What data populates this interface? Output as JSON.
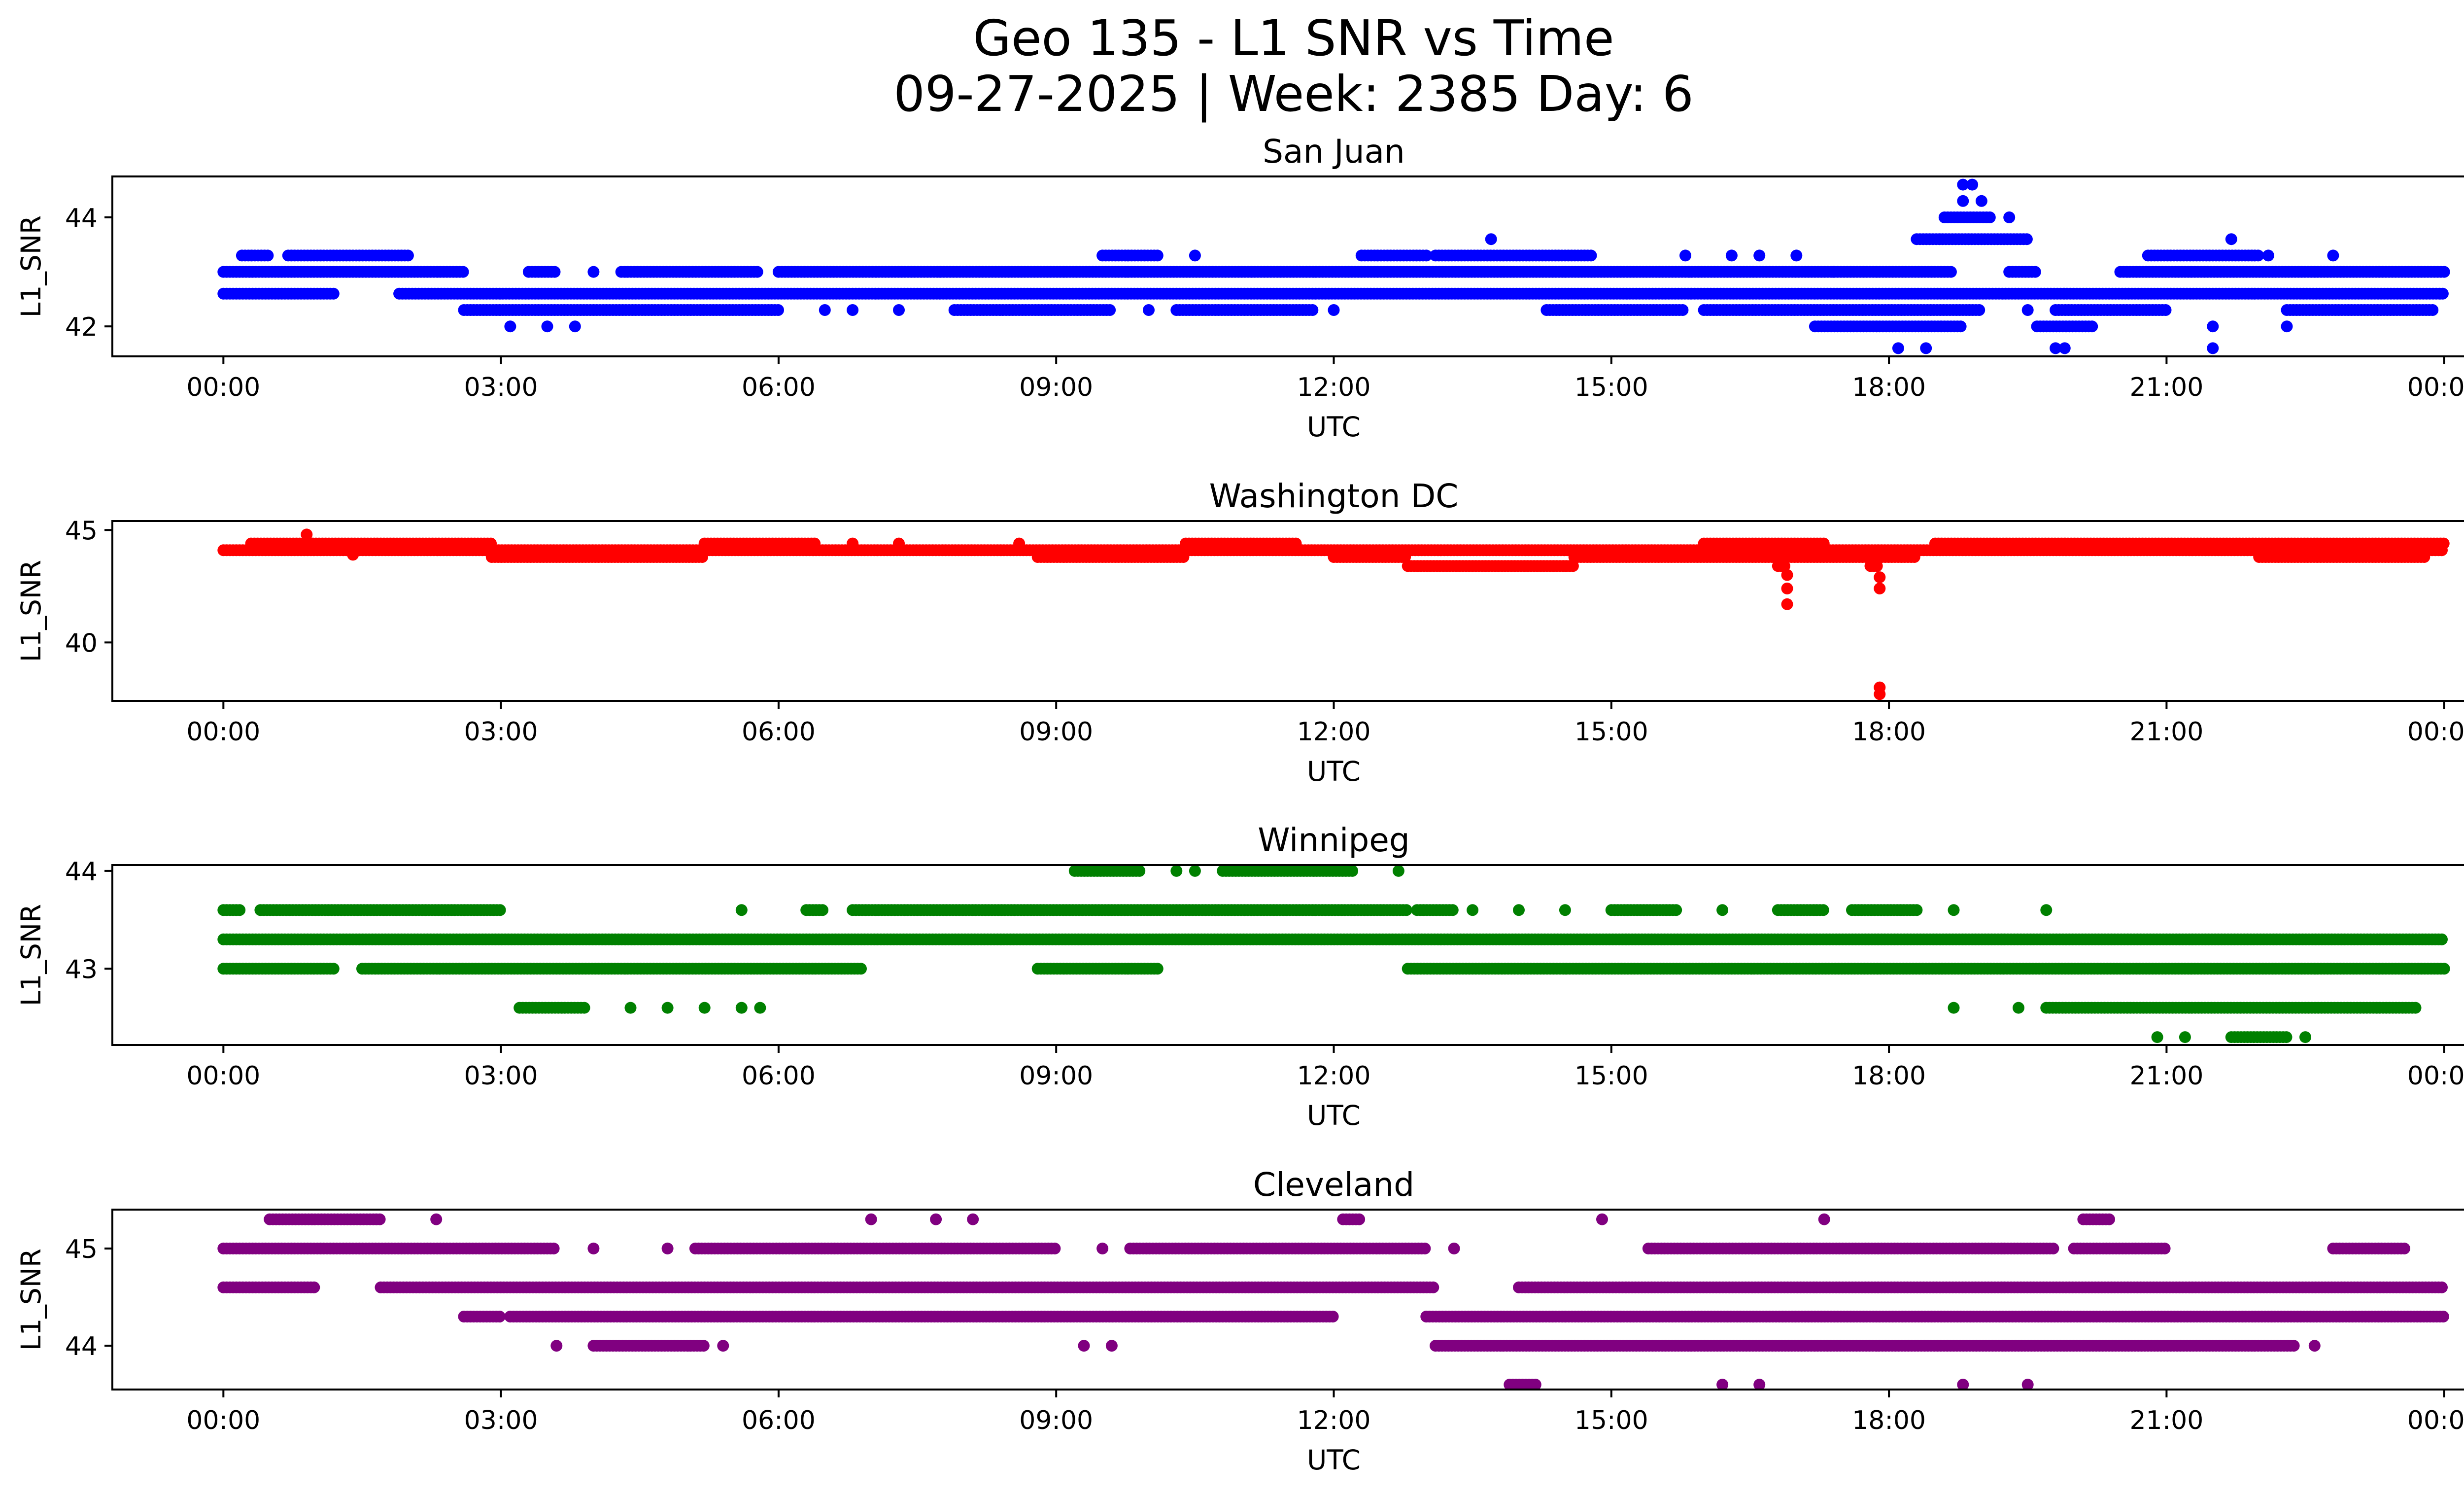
{
  "figure": {
    "title_line1": "Geo 135 - L1 SNR vs Time",
    "title_line2": "09-27-2025 | Week: 2385 Day: 6"
  },
  "chart_data": [
    {
      "type": "scatter",
      "title": "San Juan",
      "xlabel": "UTC",
      "ylabel": "L1_SNR",
      "color": "#0000ff",
      "xlim_hours": [
        -1.2,
        25.2
      ],
      "ylim": [
        41.45,
        44.75
      ],
      "xticks": [
        0,
        3,
        6,
        9,
        12,
        15,
        18,
        21,
        24
      ],
      "xtick_labels": [
        "00:00",
        "03:00",
        "06:00",
        "09:00",
        "12:00",
        "15:00",
        "18:00",
        "21:00",
        "00:00"
      ],
      "yticks": [
        42,
        44
      ],
      "ytick_labels": [
        "42",
        "44"
      ],
      "levels": [
        {
          "y": 42.6,
          "segments": [
            [
              0,
              1.2
            ],
            [
              1.9,
              24
            ]
          ]
        },
        {
          "y": 43.0,
          "segments": [
            [
              0,
              2.6
            ],
            [
              3.3,
              3.6
            ],
            [
              4.3,
              5.8
            ],
            [
              6.0,
              18.7
            ],
            [
              19.3,
              19.6
            ],
            [
              20.5,
              24
            ]
          ]
        },
        {
          "y": 42.3,
          "segments": [
            [
              2.6,
              6.0
            ],
            [
              7.9,
              9.6
            ],
            [
              10.3,
              11.8
            ],
            [
              14.3,
              15.8
            ],
            [
              16.0,
              19.0
            ],
            [
              19.8,
              21.0
            ],
            [
              22.3,
              23.9
            ]
          ]
        },
        {
          "y": 43.3,
          "segments": [
            [
              0.2,
              0.5
            ],
            [
              0.7,
              2.0
            ],
            [
              9.5,
              10.1
            ],
            [
              12.3,
              13.0
            ],
            [
              13.1,
              14.8
            ],
            [
              20.8,
              22.0
            ]
          ]
        },
        {
          "y": 42.0,
          "segments": [
            [
              17.2,
              18.8
            ],
            [
              19.6,
              20.2
            ]
          ]
        },
        {
          "y": 43.6,
          "segments": [
            [
              18.3,
              19.5
            ]
          ]
        },
        {
          "y": 44.0,
          "segments": [
            [
              18.6,
              19.1
            ]
          ]
        }
      ],
      "points": [
        {
          "x": 3.1,
          "y": 42.0
        },
        {
          "x": 3.5,
          "y": 42.0
        },
        {
          "x": 3.8,
          "y": 42.0
        },
        {
          "x": 4.0,
          "y": 43.0
        },
        {
          "x": 6.5,
          "y": 42.3
        },
        {
          "x": 6.8,
          "y": 42.3
        },
        {
          "x": 7.3,
          "y": 42.3
        },
        {
          "x": 10.0,
          "y": 42.3
        },
        {
          "x": 10.5,
          "y": 43.3
        },
        {
          "x": 12.0,
          "y": 42.3
        },
        {
          "x": 13.7,
          "y": 43.6
        },
        {
          "x": 15.8,
          "y": 43.3
        },
        {
          "x": 16.3,
          "y": 43.3
        },
        {
          "x": 16.6,
          "y": 43.3
        },
        {
          "x": 17.0,
          "y": 43.3
        },
        {
          "x": 17.4,
          "y": 43.0
        },
        {
          "x": 18.1,
          "y": 41.6
        },
        {
          "x": 18.4,
          "y": 41.6
        },
        {
          "x": 18.8,
          "y": 44.3
        },
        {
          "x": 18.8,
          "y": 44.6
        },
        {
          "x": 18.9,
          "y": 44.6
        },
        {
          "x": 19.0,
          "y": 44.3
        },
        {
          "x": 19.3,
          "y": 44.0
        },
        {
          "x": 19.5,
          "y": 42.3
        },
        {
          "x": 19.8,
          "y": 41.6
        },
        {
          "x": 19.9,
          "y": 41.6
        },
        {
          "x": 21.5,
          "y": 41.6
        },
        {
          "x": 21.5,
          "y": 42.0
        },
        {
          "x": 21.7,
          "y": 43.6
        },
        {
          "x": 22.1,
          "y": 43.3
        },
        {
          "x": 22.3,
          "y": 42.0
        },
        {
          "x": 22.8,
          "y": 43.3
        }
      ]
    },
    {
      "type": "scatter",
      "title": "Washington DC",
      "xlabel": "UTC",
      "ylabel": "L1_SNR",
      "color": "#ff0000",
      "xlim_hours": [
        -1.2,
        25.2
      ],
      "ylim": [
        37.4,
        45.4
      ],
      "xticks": [
        0,
        3,
        6,
        9,
        12,
        15,
        18,
        21,
        24
      ],
      "xtick_labels": [
        "00:00",
        "03:00",
        "06:00",
        "09:00",
        "12:00",
        "15:00",
        "18:00",
        "21:00",
        "00:00"
      ],
      "yticks": [
        40,
        45
      ],
      "ytick_labels": [
        "40",
        "45"
      ],
      "levels": [
        {
          "y": 44.1,
          "segments": [
            [
              0,
              24
            ]
          ]
        },
        {
          "y": 44.4,
          "segments": [
            [
              0.3,
              2.9
            ],
            [
              5.2,
              6.4
            ],
            [
              10.4,
              11.6
            ],
            [
              16.0,
              17.3
            ],
            [
              18.5,
              24
            ]
          ]
        },
        {
          "y": 43.8,
          "segments": [
            [
              2.9,
              5.2
            ],
            [
              8.8,
              10.4
            ],
            [
              12.0,
              12.8
            ],
            [
              14.6,
              18.3
            ],
            [
              22.0,
              23.8
            ]
          ]
        },
        {
          "y": 43.4,
          "segments": [
            [
              12.8,
              14.6
            ],
            [
              16.8,
              16.9
            ],
            [
              17.8,
              17.9
            ]
          ]
        }
      ],
      "points": [
        {
          "x": 0.9,
          "y": 44.8
        },
        {
          "x": 1.4,
          "y": 43.9
        },
        {
          "x": 6.8,
          "y": 44.4
        },
        {
          "x": 7.3,
          "y": 44.4
        },
        {
          "x": 8.6,
          "y": 44.4
        },
        {
          "x": 16.9,
          "y": 43.0
        },
        {
          "x": 16.9,
          "y": 42.4
        },
        {
          "x": 16.9,
          "y": 41.7
        },
        {
          "x": 17.9,
          "y": 42.9
        },
        {
          "x": 17.9,
          "y": 42.4
        },
        {
          "x": 17.9,
          "y": 38.0
        },
        {
          "x": 17.9,
          "y": 37.7
        }
      ]
    },
    {
      "type": "scatter",
      "title": "Winnipeg",
      "xlabel": "UTC",
      "ylabel": "L1_SNR",
      "color": "#008000",
      "xlim_hours": [
        -1.2,
        25.2
      ],
      "ylim": [
        42.22,
        44.06
      ],
      "xticks": [
        0,
        3,
        6,
        9,
        12,
        15,
        18,
        21,
        24
      ],
      "xtick_labels": [
        "00:00",
        "03:00",
        "06:00",
        "09:00",
        "12:00",
        "15:00",
        "18:00",
        "21:00",
        "00:00"
      ],
      "yticks": [
        43,
        44
      ],
      "ytick_labels": [
        "43",
        "44"
      ],
      "levels": [
        {
          "y": 43.3,
          "segments": [
            [
              0,
              24
            ]
          ]
        },
        {
          "y": 43.0,
          "segments": [
            [
              0,
              1.2
            ],
            [
              1.5,
              6.9
            ],
            [
              8.8,
              10.1
            ],
            [
              12.8,
              24
            ]
          ]
        },
        {
          "y": 43.6,
          "segments": [
            [
              0,
              0.2
            ],
            [
              0.4,
              3.0
            ],
            [
              6.3,
              6.5
            ],
            [
              6.8,
              12.8
            ],
            [
              12.9,
              13.3
            ],
            [
              15.0,
              15.7
            ],
            [
              16.8,
              17.3
            ],
            [
              17.6,
              18.3
            ]
          ]
        },
        {
          "y": 42.6,
          "segments": [
            [
              3.2,
              3.9
            ],
            [
              19.7,
              23.7
            ]
          ]
        },
        {
          "y": 44.0,
          "segments": [
            [
              9.2,
              9.9
            ],
            [
              10.8,
              12.2
            ]
          ]
        },
        {
          "y": 42.3,
          "segments": [
            [
              21.7,
              22.3
            ]
          ]
        }
      ],
      "points": [
        {
          "x": 5.6,
          "y": 43.6
        },
        {
          "x": 5.6,
          "y": 42.6
        },
        {
          "x": 5.8,
          "y": 42.6
        },
        {
          "x": 4.4,
          "y": 42.6
        },
        {
          "x": 4.8,
          "y": 42.6
        },
        {
          "x": 5.2,
          "y": 42.6
        },
        {
          "x": 10.3,
          "y": 44.0
        },
        {
          "x": 10.5,
          "y": 44.0
        },
        {
          "x": 12.7,
          "y": 44.0
        },
        {
          "x": 13.5,
          "y": 43.6
        },
        {
          "x": 14.0,
          "y": 43.6
        },
        {
          "x": 14.5,
          "y": 43.6
        },
        {
          "x": 16.2,
          "y": 43.6
        },
        {
          "x": 18.7,
          "y": 43.6
        },
        {
          "x": 19.7,
          "y": 43.6
        },
        {
          "x": 18.7,
          "y": 42.6
        },
        {
          "x": 19.4,
          "y": 42.6
        },
        {
          "x": 20.9,
          "y": 42.3
        },
        {
          "x": 21.2,
          "y": 42.3
        },
        {
          "x": 22.5,
          "y": 42.3
        }
      ]
    },
    {
      "type": "scatter",
      "title": "Cleveland",
      "xlabel": "UTC",
      "ylabel": "L1_SNR",
      "color": "#800080",
      "xlim_hours": [
        -1.2,
        25.2
      ],
      "ylim": [
        43.55,
        45.4
      ],
      "xticks": [
        0,
        3,
        6,
        9,
        12,
        15,
        18,
        21,
        24
      ],
      "xtick_labels": [
        "00:00",
        "03:00",
        "06:00",
        "09:00",
        "12:00",
        "15:00",
        "18:00",
        "21:00",
        "00:00"
      ],
      "yticks": [
        44,
        45
      ],
      "ytick_labels": [
        "44",
        "45"
      ],
      "levels": [
        {
          "y": 44.6,
          "segments": [
            [
              0,
              1.0
            ],
            [
              1.7,
              13.1
            ],
            [
              14.0,
              24
            ]
          ]
        },
        {
          "y": 44.3,
          "segments": [
            [
              2.6,
              3.0
            ],
            [
              3.1,
              12.0
            ],
            [
              13.0,
              24
            ]
          ]
        },
        {
          "y": 45.0,
          "segments": [
            [
              0,
              3.6
            ],
            [
              5.1,
              9.0
            ],
            [
              9.8,
              13.0
            ],
            [
              15.4,
              19.8
            ],
            [
              20.0,
              21.0
            ],
            [
              22.8,
              23.6
            ]
          ]
        },
        {
          "y": 44.0,
          "segments": [
            [
              4.0,
              5.2
            ],
            [
              13.1,
              22.4
            ]
          ]
        },
        {
          "y": 45.3,
          "segments": [
            [
              0.5,
              1.7
            ],
            [
              12.1,
              12.3
            ],
            [
              20.1,
              20.4
            ]
          ]
        },
        {
          "y": 43.6,
          "segments": [
            [
              13.9,
              14.2
            ]
          ]
        }
      ],
      "points": [
        {
          "x": 2.3,
          "y": 45.3
        },
        {
          "x": 3.6,
          "y": 44.0
        },
        {
          "x": 4.0,
          "y": 45.0
        },
        {
          "x": 4.8,
          "y": 45.0
        },
        {
          "x": 5.4,
          "y": 44.0
        },
        {
          "x": 7.0,
          "y": 45.3
        },
        {
          "x": 7.7,
          "y": 45.3
        },
        {
          "x": 8.1,
          "y": 45.3
        },
        {
          "x": 9.3,
          "y": 44.0
        },
        {
          "x": 9.6,
          "y": 44.0
        },
        {
          "x": 9.5,
          "y": 45.0
        },
        {
          "x": 13.3,
          "y": 45.0
        },
        {
          "x": 14.9,
          "y": 45.3
        },
        {
          "x": 16.2,
          "y": 43.6
        },
        {
          "x": 16.6,
          "y": 43.6
        },
        {
          "x": 17.3,
          "y": 45.3
        },
        {
          "x": 18.8,
          "y": 43.6
        },
        {
          "x": 19.5,
          "y": 43.6
        },
        {
          "x": 22.6,
          "y": 44.0
        }
      ]
    }
  ]
}
